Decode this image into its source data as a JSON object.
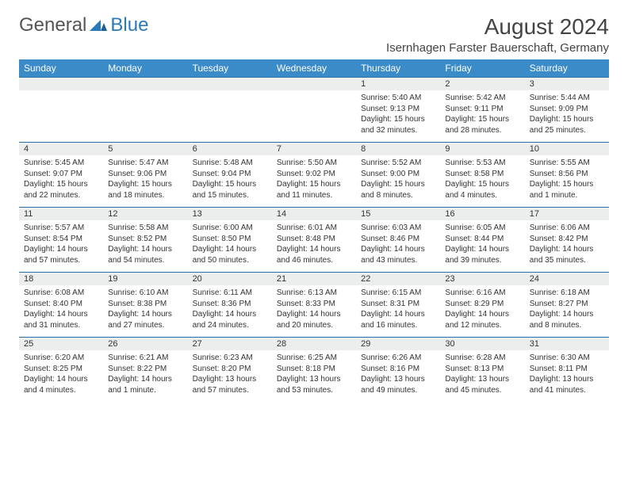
{
  "brand": {
    "text1": "General",
    "text2": "Blue"
  },
  "title": "August 2024",
  "location": "Isernhagen Farster Bauerschaft, Germany",
  "colors": {
    "header_bg": "#3b8bc9",
    "header_text": "#ffffff",
    "row_divider": "#2a6fa8",
    "daynum_bg": "#eceded",
    "body_text": "#333333",
    "logo_gray": "#555555",
    "logo_blue": "#2a7ab8",
    "page_bg": "#ffffff"
  },
  "typography": {
    "title_fontsize": 28,
    "location_fontsize": 15,
    "dayheader_fontsize": 12,
    "daynum_fontsize": 11,
    "cell_fontsize": 10,
    "logo_fontsize": 24
  },
  "layout": {
    "columns": 7,
    "rows": 5,
    "cell_min_height": 82
  },
  "day_headers": [
    "Sunday",
    "Monday",
    "Tuesday",
    "Wednesday",
    "Thursday",
    "Friday",
    "Saturday"
  ],
  "weeks": [
    [
      {
        "num": "",
        "sunrise": "",
        "sunset": "",
        "daylight": ""
      },
      {
        "num": "",
        "sunrise": "",
        "sunset": "",
        "daylight": ""
      },
      {
        "num": "",
        "sunrise": "",
        "sunset": "",
        "daylight": ""
      },
      {
        "num": "",
        "sunrise": "",
        "sunset": "",
        "daylight": ""
      },
      {
        "num": "1",
        "sunrise": "Sunrise: 5:40 AM",
        "sunset": "Sunset: 9:13 PM",
        "daylight": "Daylight: 15 hours and 32 minutes."
      },
      {
        "num": "2",
        "sunrise": "Sunrise: 5:42 AM",
        "sunset": "Sunset: 9:11 PM",
        "daylight": "Daylight: 15 hours and 28 minutes."
      },
      {
        "num": "3",
        "sunrise": "Sunrise: 5:44 AM",
        "sunset": "Sunset: 9:09 PM",
        "daylight": "Daylight: 15 hours and 25 minutes."
      }
    ],
    [
      {
        "num": "4",
        "sunrise": "Sunrise: 5:45 AM",
        "sunset": "Sunset: 9:07 PM",
        "daylight": "Daylight: 15 hours and 22 minutes."
      },
      {
        "num": "5",
        "sunrise": "Sunrise: 5:47 AM",
        "sunset": "Sunset: 9:06 PM",
        "daylight": "Daylight: 15 hours and 18 minutes."
      },
      {
        "num": "6",
        "sunrise": "Sunrise: 5:48 AM",
        "sunset": "Sunset: 9:04 PM",
        "daylight": "Daylight: 15 hours and 15 minutes."
      },
      {
        "num": "7",
        "sunrise": "Sunrise: 5:50 AM",
        "sunset": "Sunset: 9:02 PM",
        "daylight": "Daylight: 15 hours and 11 minutes."
      },
      {
        "num": "8",
        "sunrise": "Sunrise: 5:52 AM",
        "sunset": "Sunset: 9:00 PM",
        "daylight": "Daylight: 15 hours and 8 minutes."
      },
      {
        "num": "9",
        "sunrise": "Sunrise: 5:53 AM",
        "sunset": "Sunset: 8:58 PM",
        "daylight": "Daylight: 15 hours and 4 minutes."
      },
      {
        "num": "10",
        "sunrise": "Sunrise: 5:55 AM",
        "sunset": "Sunset: 8:56 PM",
        "daylight": "Daylight: 15 hours and 1 minute."
      }
    ],
    [
      {
        "num": "11",
        "sunrise": "Sunrise: 5:57 AM",
        "sunset": "Sunset: 8:54 PM",
        "daylight": "Daylight: 14 hours and 57 minutes."
      },
      {
        "num": "12",
        "sunrise": "Sunrise: 5:58 AM",
        "sunset": "Sunset: 8:52 PM",
        "daylight": "Daylight: 14 hours and 54 minutes."
      },
      {
        "num": "13",
        "sunrise": "Sunrise: 6:00 AM",
        "sunset": "Sunset: 8:50 PM",
        "daylight": "Daylight: 14 hours and 50 minutes."
      },
      {
        "num": "14",
        "sunrise": "Sunrise: 6:01 AM",
        "sunset": "Sunset: 8:48 PM",
        "daylight": "Daylight: 14 hours and 46 minutes."
      },
      {
        "num": "15",
        "sunrise": "Sunrise: 6:03 AM",
        "sunset": "Sunset: 8:46 PM",
        "daylight": "Daylight: 14 hours and 43 minutes."
      },
      {
        "num": "16",
        "sunrise": "Sunrise: 6:05 AM",
        "sunset": "Sunset: 8:44 PM",
        "daylight": "Daylight: 14 hours and 39 minutes."
      },
      {
        "num": "17",
        "sunrise": "Sunrise: 6:06 AM",
        "sunset": "Sunset: 8:42 PM",
        "daylight": "Daylight: 14 hours and 35 minutes."
      }
    ],
    [
      {
        "num": "18",
        "sunrise": "Sunrise: 6:08 AM",
        "sunset": "Sunset: 8:40 PM",
        "daylight": "Daylight: 14 hours and 31 minutes."
      },
      {
        "num": "19",
        "sunrise": "Sunrise: 6:10 AM",
        "sunset": "Sunset: 8:38 PM",
        "daylight": "Daylight: 14 hours and 27 minutes."
      },
      {
        "num": "20",
        "sunrise": "Sunrise: 6:11 AM",
        "sunset": "Sunset: 8:36 PM",
        "daylight": "Daylight: 14 hours and 24 minutes."
      },
      {
        "num": "21",
        "sunrise": "Sunrise: 6:13 AM",
        "sunset": "Sunset: 8:33 PM",
        "daylight": "Daylight: 14 hours and 20 minutes."
      },
      {
        "num": "22",
        "sunrise": "Sunrise: 6:15 AM",
        "sunset": "Sunset: 8:31 PM",
        "daylight": "Daylight: 14 hours and 16 minutes."
      },
      {
        "num": "23",
        "sunrise": "Sunrise: 6:16 AM",
        "sunset": "Sunset: 8:29 PM",
        "daylight": "Daylight: 14 hours and 12 minutes."
      },
      {
        "num": "24",
        "sunrise": "Sunrise: 6:18 AM",
        "sunset": "Sunset: 8:27 PM",
        "daylight": "Daylight: 14 hours and 8 minutes."
      }
    ],
    [
      {
        "num": "25",
        "sunrise": "Sunrise: 6:20 AM",
        "sunset": "Sunset: 8:25 PM",
        "daylight": "Daylight: 14 hours and 4 minutes."
      },
      {
        "num": "26",
        "sunrise": "Sunrise: 6:21 AM",
        "sunset": "Sunset: 8:22 PM",
        "daylight": "Daylight: 14 hours and 1 minute."
      },
      {
        "num": "27",
        "sunrise": "Sunrise: 6:23 AM",
        "sunset": "Sunset: 8:20 PM",
        "daylight": "Daylight: 13 hours and 57 minutes."
      },
      {
        "num": "28",
        "sunrise": "Sunrise: 6:25 AM",
        "sunset": "Sunset: 8:18 PM",
        "daylight": "Daylight: 13 hours and 53 minutes."
      },
      {
        "num": "29",
        "sunrise": "Sunrise: 6:26 AM",
        "sunset": "Sunset: 8:16 PM",
        "daylight": "Daylight: 13 hours and 49 minutes."
      },
      {
        "num": "30",
        "sunrise": "Sunrise: 6:28 AM",
        "sunset": "Sunset: 8:13 PM",
        "daylight": "Daylight: 13 hours and 45 minutes."
      },
      {
        "num": "31",
        "sunrise": "Sunrise: 6:30 AM",
        "sunset": "Sunset: 8:11 PM",
        "daylight": "Daylight: 13 hours and 41 minutes."
      }
    ]
  ]
}
